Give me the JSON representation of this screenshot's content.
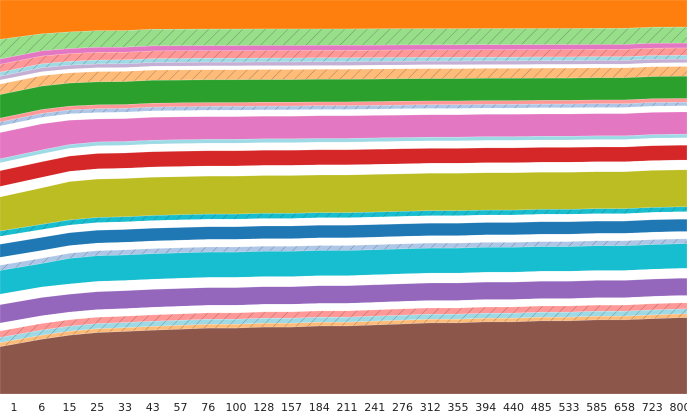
{
  "chart_data": {
    "type": "area",
    "stacked": true,
    "x": [
      "1",
      "6",
      "15",
      "25",
      "33",
      "43",
      "57",
      "76",
      "100",
      "128",
      "157",
      "184",
      "211",
      "241",
      "276",
      "312",
      "355",
      "394",
      "440",
      "485",
      "533",
      "585",
      "658",
      "723",
      "800"
    ],
    "grid": {
      "vertical": true,
      "style": "dotted"
    },
    "series": [
      {
        "color": "#ff7f0e",
        "hatch": false,
        "values": [
          30,
          26,
          25,
          24,
          24,
          23,
          23,
          23,
          23,
          23,
          23,
          23,
          23,
          23,
          23,
          23,
          23,
          23,
          23,
          23,
          23,
          23,
          23,
          22,
          22
        ]
      },
      {
        "color": "#98df8a",
        "hatch": true,
        "values": [
          15,
          13,
          13,
          13,
          13,
          13,
          13,
          13,
          13,
          13,
          13,
          13,
          13,
          13,
          13,
          13,
          13,
          13,
          13,
          13,
          13,
          13,
          13,
          13,
          13
        ]
      },
      {
        "color": "#e377c2",
        "hatch": false,
        "values": [
          4,
          4,
          4,
          4,
          4,
          4,
          4,
          4,
          4,
          4,
          4,
          4,
          4,
          4,
          4,
          4,
          4,
          4,
          4,
          4,
          4,
          4,
          4,
          4,
          4
        ]
      },
      {
        "color": "#ff9896",
        "hatch": true,
        "values": [
          6,
          6,
          6,
          6,
          6,
          6,
          6,
          6,
          6,
          6,
          6,
          6,
          6,
          6,
          6,
          6,
          6,
          6,
          6,
          6,
          6,
          6,
          6,
          6,
          6
        ]
      },
      {
        "color": "#9edae5",
        "hatch": true,
        "values": [
          3,
          3,
          3,
          3,
          3,
          3,
          3,
          3,
          3,
          3,
          3,
          3,
          3,
          3,
          3,
          3,
          3,
          3,
          3,
          3,
          3,
          3,
          3,
          3,
          3
        ]
      },
      {
        "color": "#c5b0d5",
        "hatch": false,
        "values": [
          3,
          3,
          3,
          3,
          3,
          3,
          3,
          3,
          3,
          3,
          3,
          3,
          3,
          3,
          3,
          3,
          3,
          3,
          3,
          3,
          3,
          3,
          3,
          3,
          3
        ]
      },
      {
        "color": "#ffffff",
        "hatch": false,
        "values": [
          3,
          3,
          3,
          3,
          3,
          3,
          3,
          3,
          3,
          3,
          3,
          3,
          3,
          3,
          3,
          3,
          3,
          3,
          3,
          3,
          3,
          3,
          3,
          3,
          3
        ]
      },
      {
        "color": "#ffbb78",
        "hatch": true,
        "values": [
          8,
          8,
          8,
          8,
          8,
          8,
          8,
          8,
          8,
          8,
          8,
          8,
          8,
          8,
          8,
          8,
          8,
          8,
          8,
          8,
          8,
          8,
          8,
          8,
          8
        ]
      },
      {
        "color": "#2ca02c",
        "hatch": false,
        "values": [
          18,
          18,
          18,
          18,
          18,
          18,
          18,
          18,
          18,
          18,
          18,
          18,
          18,
          18,
          18,
          18,
          18,
          18,
          18,
          18,
          18,
          18,
          18,
          18,
          18
        ]
      },
      {
        "color": "#ff9896",
        "hatch": false,
        "values": [
          3,
          3,
          3,
          3,
          3,
          3,
          3,
          3,
          3,
          3,
          3,
          3,
          3,
          3,
          3,
          3,
          3,
          3,
          3,
          3,
          3,
          3,
          3,
          3,
          3
        ]
      },
      {
        "color": "#aec7e8",
        "hatch": true,
        "values": [
          3,
          3,
          3,
          3,
          3,
          3,
          3,
          3,
          3,
          3,
          3,
          3,
          3,
          3,
          3,
          3,
          3,
          3,
          3,
          3,
          3,
          3,
          3,
          3,
          3
        ]
      },
      {
        "color": "#ffffff",
        "hatch": false,
        "values": [
          5,
          5,
          5,
          5,
          5,
          5,
          5,
          5,
          5,
          5,
          5,
          5,
          5,
          5,
          5,
          5,
          5,
          5,
          5,
          5,
          5,
          5,
          5,
          5,
          5
        ]
      },
      {
        "color": "#e377c2",
        "hatch": false,
        "values": [
          20,
          20,
          19,
          18,
          18,
          18,
          18,
          18,
          18,
          18,
          18,
          18,
          18,
          18,
          18,
          18,
          18,
          18,
          18,
          18,
          18,
          18,
          18,
          18,
          18
        ]
      },
      {
        "color": "#9edae5",
        "hatch": false,
        "values": [
          3,
          3,
          3,
          3,
          3,
          3,
          3,
          3,
          3,
          3,
          3,
          3,
          3,
          3,
          3,
          3,
          3,
          3,
          3,
          3,
          3,
          3,
          3,
          3,
          3
        ]
      },
      {
        "color": "#ffffff",
        "hatch": false,
        "values": [
          6,
          6,
          6,
          6,
          6,
          6,
          6,
          6,
          6,
          6,
          6,
          6,
          6,
          6,
          6,
          6,
          6,
          6,
          6,
          6,
          6,
          6,
          6,
          6,
          6
        ]
      },
      {
        "color": "#d62728",
        "hatch": false,
        "values": [
          12,
          12,
          12,
          12,
          12,
          12,
          12,
          12,
          12,
          12,
          12,
          12,
          12,
          12,
          12,
          12,
          12,
          12,
          12,
          12,
          12,
          12,
          12,
          12,
          12
        ]
      },
      {
        "color": "#ffffff",
        "hatch": false,
        "values": [
          8,
          8,
          8,
          8,
          8,
          8,
          8,
          8,
          8,
          8,
          8,
          8,
          8,
          8,
          8,
          8,
          8,
          8,
          8,
          8,
          8,
          8,
          8,
          8,
          8
        ]
      },
      {
        "color": "#bcbd22",
        "hatch": false,
        "values": [
          26,
          28,
          30,
          30,
          30,
          30,
          30,
          30,
          30,
          30,
          30,
          30,
          30,
          30,
          30,
          30,
          30,
          30,
          30,
          30,
          30,
          30,
          30,
          30,
          30
        ]
      },
      {
        "color": "#17becf",
        "hatch": true,
        "values": [
          4,
          4,
          4,
          4,
          4,
          4,
          4,
          4,
          4,
          4,
          4,
          4,
          4,
          4,
          4,
          4,
          4,
          4,
          4,
          4,
          4,
          4,
          4,
          4,
          4
        ]
      },
      {
        "color": "#ffffff",
        "hatch": false,
        "values": [
          6,
          6,
          6,
          6,
          6,
          6,
          6,
          6,
          6,
          6,
          6,
          6,
          6,
          6,
          6,
          6,
          6,
          6,
          6,
          6,
          6,
          6,
          6,
          6,
          6
        ]
      },
      {
        "color": "#1f77b4",
        "hatch": false,
        "values": [
          10,
          10,
          10,
          10,
          10,
          10,
          10,
          10,
          10,
          10,
          10,
          10,
          10,
          10,
          10,
          10,
          10,
          10,
          10,
          10,
          10,
          10,
          10,
          10,
          10
        ]
      },
      {
        "color": "#ffffff",
        "hatch": false,
        "values": [
          6,
          6,
          6,
          6,
          6,
          6,
          6,
          6,
          6,
          6,
          6,
          6,
          6,
          6,
          6,
          6,
          6,
          6,
          6,
          6,
          6,
          6,
          6,
          6,
          6
        ]
      },
      {
        "color": "#aec7e8",
        "hatch": true,
        "values": [
          4,
          4,
          4,
          4,
          4,
          4,
          4,
          4,
          4,
          4,
          4,
          4,
          4,
          4,
          4,
          4,
          4,
          4,
          4,
          4,
          4,
          4,
          4,
          4,
          4
        ]
      },
      {
        "color": "#17becf",
        "hatch": false,
        "values": [
          18,
          18,
          20,
          20,
          20,
          20,
          20,
          20,
          20,
          20,
          20,
          20,
          20,
          20,
          20,
          20,
          20,
          20,
          20,
          20,
          20,
          20,
          20,
          20,
          20
        ]
      },
      {
        "color": "#ffffff",
        "hatch": false,
        "values": [
          8,
          8,
          8,
          8,
          8,
          8,
          8,
          8,
          8,
          8,
          8,
          8,
          8,
          8,
          8,
          8,
          8,
          8,
          8,
          8,
          8,
          8,
          8,
          8,
          8
        ]
      },
      {
        "color": "#9467bd",
        "hatch": false,
        "values": [
          14,
          14,
          14,
          14,
          14,
          14,
          14,
          14,
          14,
          14,
          14,
          14,
          14,
          14,
          14,
          14,
          14,
          14,
          14,
          14,
          14,
          14,
          14,
          14,
          14
        ]
      },
      {
        "color": "#ffffff",
        "hatch": false,
        "values": [
          6,
          6,
          6,
          6,
          6,
          6,
          6,
          6,
          6,
          6,
          6,
          6,
          6,
          6,
          6,
          6,
          6,
          6,
          6,
          6,
          6,
          6,
          6,
          6,
          6
        ]
      },
      {
        "color": "#ff9896",
        "hatch": true,
        "values": [
          5,
          5,
          5,
          5,
          5,
          5,
          5,
          5,
          5,
          5,
          5,
          5,
          5,
          5,
          5,
          5,
          5,
          5,
          5,
          5,
          5,
          5,
          5,
          5,
          5
        ]
      },
      {
        "color": "#9edae5",
        "hatch": true,
        "values": [
          4,
          4,
          4,
          4,
          4,
          4,
          4,
          4,
          4,
          4,
          4,
          4,
          4,
          4,
          4,
          4,
          4,
          4,
          4,
          4,
          4,
          4,
          4,
          4,
          4
        ]
      },
      {
        "color": "#ffbb78",
        "hatch": true,
        "values": [
          3,
          3,
          3,
          3,
          3,
          3,
          3,
          3,
          3,
          3,
          3,
          3,
          3,
          3,
          3,
          3,
          3,
          3,
          3,
          3,
          3,
          3,
          3,
          3,
          3
        ]
      },
      {
        "color": "#8c564b",
        "hatch": false,
        "values": [
          36,
          42,
          46,
          48,
          49,
          50,
          51,
          52,
          52,
          53,
          53,
          54,
          54,
          55,
          56,
          57,
          57,
          58,
          58,
          59,
          59,
          60,
          60,
          61,
          62
        ]
      }
    ]
  }
}
